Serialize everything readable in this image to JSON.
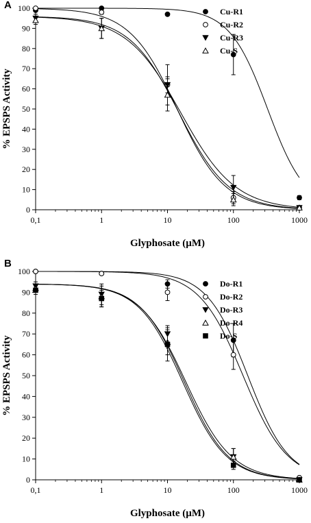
{
  "chart_data": [
    {
      "type": "scatter",
      "panel_label": "A",
      "xlabel": "Glyphosate (µM)",
      "ylabel": "% EPSPS Activity",
      "x_scale": "log",
      "xlim": [
        0.1,
        1000
      ],
      "ylim": [
        0,
        100
      ],
      "x_ticks": [
        0.1,
        1,
        10,
        100,
        1000
      ],
      "x_tick_labels": [
        "0,1",
        "1",
        "10",
        "100",
        "1000"
      ],
      "y_ticks": [
        0,
        10,
        20,
        30,
        40,
        50,
        60,
        70,
        80,
        90,
        100
      ],
      "y_tick_labels": [
        "0",
        "10",
        "20",
        "30",
        "40",
        "50",
        "60",
        "70",
        "80",
        "90",
        "100"
      ],
      "grid": false,
      "legend_position": "top-right",
      "x": [
        0.1,
        1,
        10,
        100,
        1000
      ],
      "series": [
        {
          "name": "Cu-R1",
          "marker": "filled-circle",
          "values": [
            99,
            100,
            97,
            77,
            6
          ],
          "errors": [
            0,
            0,
            0,
            10,
            1
          ],
          "fit": {
            "top": 100,
            "bottom": 0,
            "ic50": 330,
            "hill": 1.5
          }
        },
        {
          "name": "Cu-R2",
          "marker": "open-circle",
          "values": [
            100,
            98,
            62,
            6,
            1
          ],
          "errors": [
            0,
            1,
            4,
            3,
            0.5
          ],
          "fit": {
            "top": 100,
            "bottom": 0,
            "ic50": 14,
            "hill": 1.2
          }
        },
        {
          "name": "Cu-R3",
          "marker": "filled-triangle-down",
          "values": [
            95,
            90,
            62,
            11,
            1
          ],
          "errors": [
            2,
            5,
            10,
            6,
            0.5
          ],
          "fit": {
            "top": 96,
            "bottom": 0,
            "ic50": 16,
            "hill": 1.05
          }
        },
        {
          "name": "Cu-S",
          "marker": "open-triangle-up",
          "values": [
            94,
            90,
            57,
            5,
            1
          ],
          "errors": [
            2,
            5,
            8,
            3,
            0.5
          ],
          "fit": {
            "top": 96,
            "bottom": 0,
            "ic50": 15,
            "hill": 1.15
          }
        }
      ]
    },
    {
      "type": "scatter",
      "panel_label": "B",
      "xlabel": "Glyphosate (µM)",
      "ylabel": "% EPSPS Activity",
      "x_scale": "log",
      "xlim": [
        0.1,
        1000
      ],
      "ylim": [
        0,
        100
      ],
      "x_ticks": [
        0.1,
        1,
        10,
        100,
        1000
      ],
      "x_tick_labels": [
        "0,1",
        "1",
        "10",
        "100",
        "1000"
      ],
      "y_ticks": [
        0,
        10,
        20,
        30,
        40,
        50,
        60,
        70,
        80,
        90,
        100
      ],
      "y_tick_labels": [
        "0",
        "10",
        "20",
        "30",
        "40",
        "50",
        "60",
        "70",
        "80",
        "90",
        "100"
      ],
      "grid": false,
      "legend_position": "top-right",
      "x": [
        0.1,
        1,
        10,
        100,
        1000
      ],
      "series": [
        {
          "name": "Do-R1",
          "marker": "filled-circle",
          "values": [
            100,
            99,
            94,
            67,
            1
          ],
          "errors": [
            0,
            0.5,
            2,
            8,
            0.5
          ],
          "fit": {
            "top": 100,
            "bottom": 0,
            "ic50": 165,
            "hill": 1.4
          }
        },
        {
          "name": "Do-R2",
          "marker": "open-circle",
          "values": [
            100,
            99,
            90,
            60,
            1
          ],
          "errors": [
            0,
            0.5,
            4,
            7,
            0.5
          ],
          "fit": {
            "top": 100,
            "bottom": 0,
            "ic50": 140,
            "hill": 1.3
          }
        },
        {
          "name": "Do-R3",
          "marker": "filled-triangle-down",
          "values": [
            93,
            89,
            70,
            11,
            0
          ],
          "errors": [
            2,
            5,
            4,
            4,
            0.5
          ],
          "fit": {
            "top": 94,
            "bottom": 0,
            "ic50": 19,
            "hill": 1.25
          }
        },
        {
          "name": "Do-R4",
          "marker": "open-triangle-up",
          "values": [
            92,
            88,
            66,
            11,
            0
          ],
          "errors": [
            2,
            5,
            6,
            4,
            0.5
          ],
          "fit": {
            "top": 94,
            "bottom": 0,
            "ic50": 18,
            "hill": 1.3
          }
        },
        {
          "name": "Do-S",
          "marker": "filled-square",
          "values": [
            91,
            87,
            65,
            7,
            0
          ],
          "errors": [
            2,
            4,
            8,
            2,
            0.5
          ],
          "fit": {
            "top": 94,
            "bottom": 0,
            "ic50": 17,
            "hill": 1.3
          }
        }
      ]
    }
  ]
}
